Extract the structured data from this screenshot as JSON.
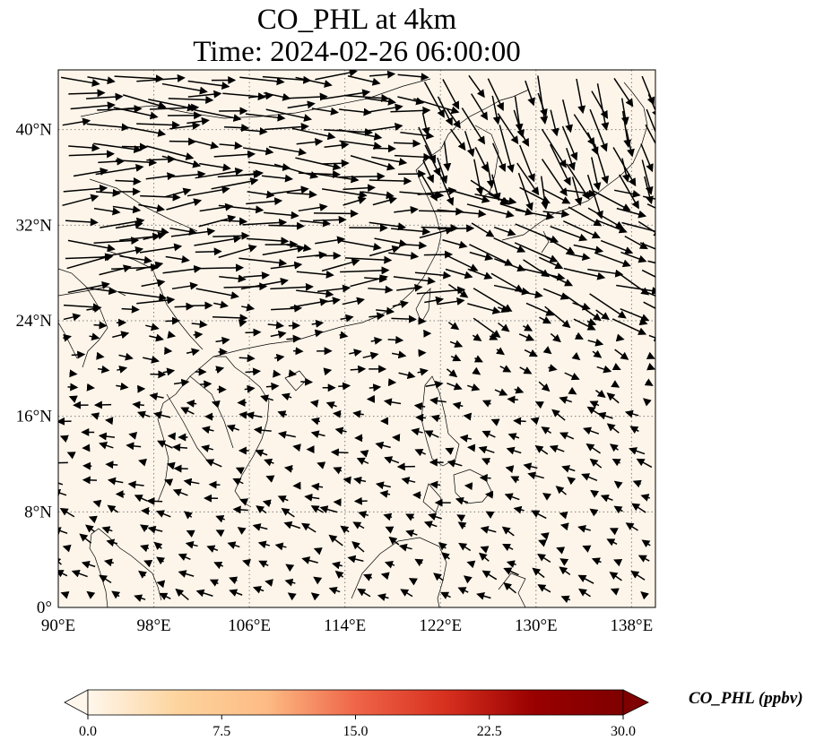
{
  "title": "CO_PHL at 4km",
  "subtitle": "Time: 2024-02-26 06:00:00",
  "colors": {
    "background": "#fdf5ea",
    "coast": "#000000",
    "grid": "#808080",
    "arrow": "#000000"
  },
  "map": {
    "lon_range": [
      90,
      140
    ],
    "lat_range": [
      0,
      45
    ],
    "gridline_style": "dotted",
    "lon_ticks": [
      {
        "value": 90,
        "label": "90°E"
      },
      {
        "value": 98,
        "label": "98°E"
      },
      {
        "value": 106,
        "label": "106°E"
      },
      {
        "value": 114,
        "label": "114°E"
      },
      {
        "value": 122,
        "label": "122°E"
      },
      {
        "value": 130,
        "label": "130°E"
      },
      {
        "value": 138,
        "label": "138°E"
      }
    ],
    "lat_ticks": [
      {
        "value": 0,
        "label": "0°"
      },
      {
        "value": 8,
        "label": "8°N"
      },
      {
        "value": 16,
        "label": "16°N"
      },
      {
        "value": 24,
        "label": "24°N"
      },
      {
        "value": 32,
        "label": "32°N"
      },
      {
        "value": 40,
        "label": "40°N"
      }
    ],
    "field_quantity": "CO_PHL",
    "field_note_level": "near-zero concentrations across domain"
  },
  "colorbar": {
    "label": "CO_PHL (ppbv)",
    "min": 0.0,
    "max": 30.0,
    "extend": "both",
    "ticks": [
      "0.0",
      "7.5",
      "15.0",
      "22.5",
      "30.0"
    ],
    "cmap": [
      "#fff7ec",
      "#fdd49e",
      "#fdbb84",
      "#ef6548",
      "#d7301f",
      "#990000",
      "#7f0000"
    ]
  },
  "wind": {
    "description_units": "arrow vectors",
    "zones": [
      {
        "lat": [
          36,
          45
        ],
        "lon": [
          90,
          120
        ],
        "u": 1.0,
        "v": -0.05
      },
      {
        "lat": [
          36,
          45
        ],
        "lon": [
          120,
          140
        ],
        "u": 0.35,
        "v": -0.9
      },
      {
        "lat": [
          26,
          36
        ],
        "lon": [
          90,
          122
        ],
        "u": 1.0,
        "v": 0.05
      },
      {
        "lat": [
          26,
          36
        ],
        "lon": [
          122,
          140
        ],
        "u": 0.9,
        "v": -0.35
      },
      {
        "lat": [
          18,
          26
        ],
        "lon": [
          90,
          122
        ],
        "u": 1.0,
        "v": 0.0
      },
      {
        "lat": [
          18,
          26
        ],
        "lon": [
          122,
          140
        ],
        "u": 0.85,
        "v": -0.45
      },
      {
        "lat": [
          8,
          18
        ],
        "lon": [
          90,
          130
        ],
        "u": -0.9,
        "v": 0.2
      },
      {
        "lat": [
          0,
          8
        ],
        "lon": [
          90,
          130
        ],
        "u": -0.8,
        "v": 0.4
      }
    ]
  }
}
